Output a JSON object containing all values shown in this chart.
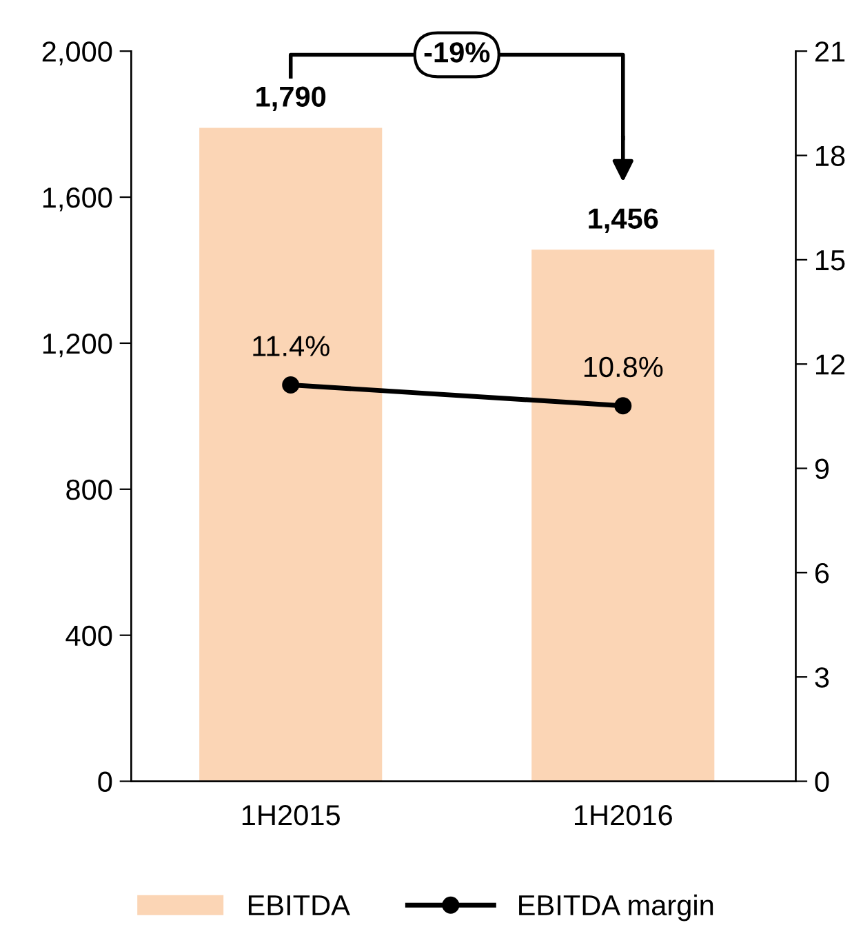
{
  "chart_data": {
    "type": "bar",
    "categories": [
      "1H2015",
      "1H2016"
    ],
    "series": [
      {
        "name": "EBITDA",
        "color": "#fbd5b5",
        "values": [
          1790,
          1456
        ],
        "value_labels": [
          "1,790",
          "1,456"
        ]
      },
      {
        "name": "EBITDA margin",
        "type": "line",
        "axis": "y2",
        "color": "#000000",
        "values": [
          11.4,
          10.8
        ],
        "value_labels": [
          "11.4%",
          "10.8%"
        ]
      }
    ],
    "ylim": [
      0,
      2000
    ],
    "yticks": [
      {
        "value": 0,
        "label": "0"
      },
      {
        "value": 400,
        "label": "400"
      },
      {
        "value": 800,
        "label": "800"
      },
      {
        "value": 1200,
        "label": "1,200"
      },
      {
        "value": 1600,
        "label": "1,600"
      },
      {
        "value": 2000,
        "label": "2,000"
      }
    ],
    "y2lim": [
      0,
      21
    ],
    "y2ticks": [
      0,
      3,
      6,
      9,
      12,
      15,
      18,
      21
    ],
    "annotations": [
      "-19%"
    ],
    "marker": "circle",
    "line_style": "solid",
    "grid": false,
    "legend": "bottom"
  }
}
